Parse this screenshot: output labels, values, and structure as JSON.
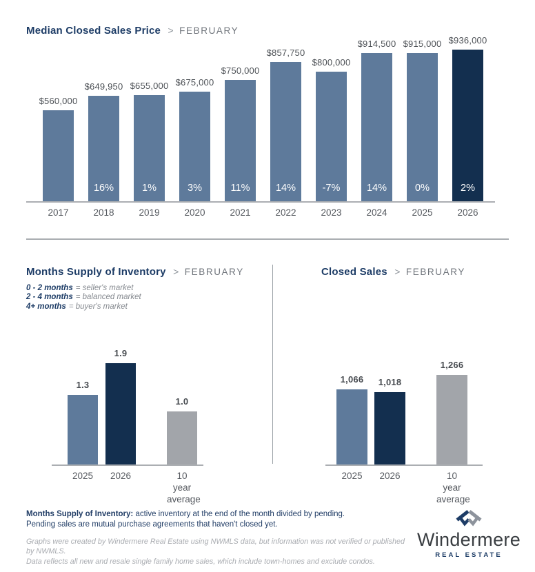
{
  "ui": {
    "separator": ">"
  },
  "chart_data": [
    {
      "id": "median_closed_sales_price",
      "type": "bar",
      "title": "Median Closed Sales Price",
      "subtitle": "FEBRUARY",
      "categories": [
        "2017",
        "2018",
        "2019",
        "2020",
        "2021",
        "2022",
        "2023",
        "2024",
        "2025",
        "2026"
      ],
      "values": [
        560000,
        649950,
        655000,
        675000,
        750000,
        857750,
        800000,
        914500,
        915000,
        936000
      ],
      "value_labels": [
        "$560,000",
        "$649,950",
        "$655,000",
        "$675,000",
        "$750,000",
        "$857,750",
        "$800,000",
        "$914,500",
        "$915,000",
        "$936,000"
      ],
      "pct_labels": [
        "",
        "16%",
        "1%",
        "3%",
        "11%",
        "14%",
        "-7%",
        "14%",
        "0%",
        "2%"
      ],
      "colors": [
        "#5e7a9b",
        "#5e7a9b",
        "#5e7a9b",
        "#5e7a9b",
        "#5e7a9b",
        "#5e7a9b",
        "#5e7a9b",
        "#5e7a9b",
        "#5e7a9b",
        "#132f4f"
      ],
      "ylim": [
        0,
        936000
      ],
      "grid": false,
      "legend_position": "none"
    },
    {
      "id": "months_supply_of_inventory",
      "type": "bar",
      "title": "Months Supply of Inventory",
      "subtitle": "FEBRUARY",
      "legend": [
        {
          "range": "0 - 2 months",
          "meaning": "= seller's market"
        },
        {
          "range": "2 - 4 months",
          "meaning": "= balanced market"
        },
        {
          "range": "4+ months",
          "meaning": "= buyer's market"
        }
      ],
      "categories": [
        "2025",
        "2026",
        "10 year\naverage"
      ],
      "values": [
        1.3,
        1.9,
        1.0
      ],
      "value_labels": [
        "1.3",
        "1.9",
        "1.0"
      ],
      "colors": [
        "#5e7a9b",
        "#132f4f",
        "#a2a5aa"
      ],
      "ylim": [
        0,
        1.9
      ],
      "grid": false
    },
    {
      "id": "closed_sales",
      "type": "bar",
      "title": "Closed Sales",
      "subtitle": "FEBRUARY",
      "categories": [
        "2025",
        "2026",
        "10 year\naverage"
      ],
      "values": [
        1066,
        1018,
        1266
      ],
      "value_labels": [
        "1,066",
        "1,018",
        "1,266"
      ],
      "colors": [
        "#5e7a9b",
        "#132f4f",
        "#a2a5aa"
      ],
      "ylim": [
        0,
        1266
      ],
      "grid": false
    }
  ],
  "footer": {
    "definition_bold": "Months Supply of Inventory:",
    "definition_rest": " active inventory at the end of the month divided by pending.",
    "definition_line2": "Pending sales are mutual purchase agreements that haven't closed yet.",
    "disclaimer_line1": "Graphs were created by Windermere Real Estate using NWMLS data, but information was not verified or published by NWMLS.",
    "disclaimer_line2": "Data reflects all new and resale single family home sales, which include town-homes and exclude condos."
  },
  "logo": {
    "name": "Windermere",
    "tagline": "REAL ESTATE"
  },
  "colors": {
    "steel_blue": "#5e7a9b",
    "navy": "#132f4f",
    "gray_bar": "#a2a5aa",
    "title_navy": "#1d3c66",
    "logo_gray": "#8d939c"
  }
}
